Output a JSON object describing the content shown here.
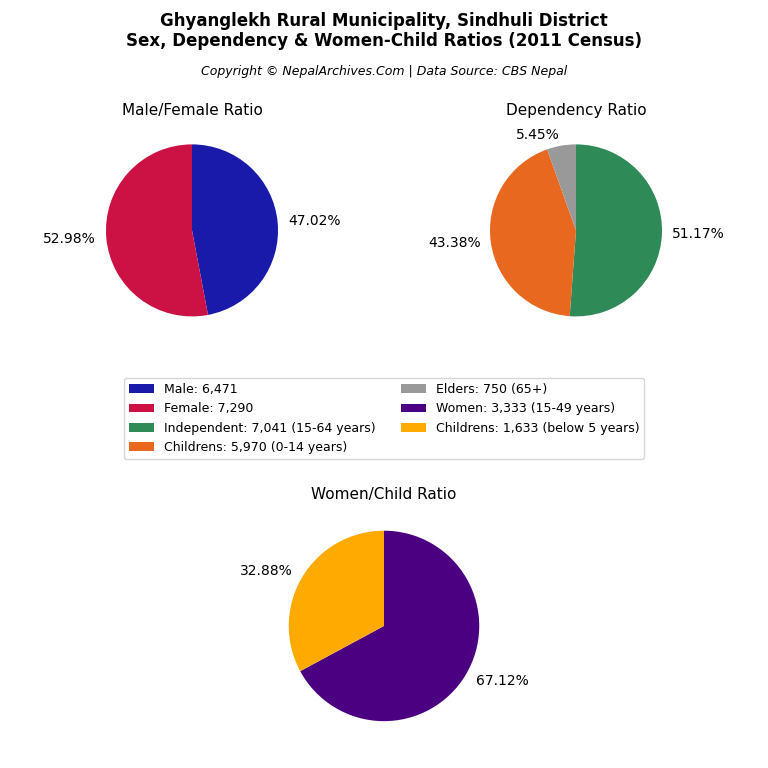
{
  "title": "Ghyanglekh Rural Municipality, Sindhuli District\nSex, Dependency & Women-Child Ratios (2011 Census)",
  "subtitle": "Copyright © NepalArchives.Com | Data Source: CBS Nepal",
  "legend": "center",
  "chart_data": [
    {
      "type": "pie",
      "title": "Male/Female Ratio",
      "categories": [
        "Male: 6,471",
        "Female: 7,290"
      ],
      "values": [
        47.02,
        52.98
      ],
      "value_labels": [
        "47.02%",
        "52.98%"
      ],
      "colors": [
        "#1a1aaa",
        "#cc1144"
      ],
      "data_labels": true
    },
    {
      "type": "pie",
      "title": "Dependency Ratio",
      "categories": [
        "Independent: 7,041 (15-64 years)",
        "Childrens: 5,970 (0-14 years)",
        "Elders: 750 (65+)"
      ],
      "values": [
        51.17,
        43.38,
        5.45
      ],
      "value_labels": [
        "51.17%",
        "43.38%",
        "5.45%"
      ],
      "colors": [
        "#2e8b57",
        "#e86820",
        "#999999"
      ],
      "data_labels": true
    },
    {
      "type": "pie",
      "title": "Women/Child Ratio",
      "categories": [
        "Women: 3,333 (15-49 years)",
        "Childrens: 1,633 (below 5 years)"
      ],
      "values": [
        67.12,
        32.88
      ],
      "value_labels": [
        "67.12%",
        "32.88%"
      ],
      "colors": [
        "#4b0082",
        "#ffaa00"
      ],
      "data_labels": true
    }
  ]
}
